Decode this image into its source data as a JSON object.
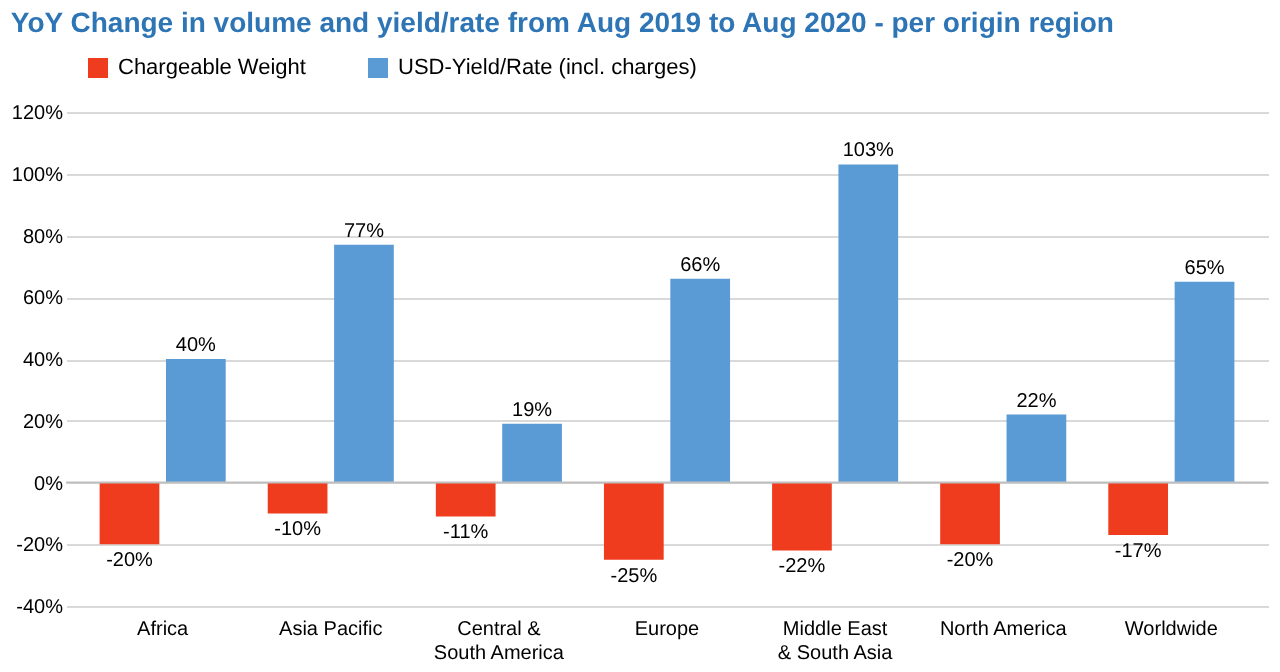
{
  "chart_data": {
    "type": "bar",
    "title": "YoY Change in volume and yield/rate from Aug 2019 to Aug 2020 - per origin region",
    "categories": [
      "Africa",
      "Asia Pacific",
      "Central &\nSouth America",
      "Europe",
      "Middle East\n& South Asia",
      "North America",
      "Worldwide"
    ],
    "series": [
      {
        "name": "Chargeable Weight",
        "color": "#f03c1e",
        "values": [
          -20,
          -10,
          -11,
          -25,
          -22,
          -20,
          -17
        ],
        "value_labels": [
          "-20%",
          "-10%",
          "-11%",
          "-25%",
          "-22%",
          "-20%",
          "-17%"
        ]
      },
      {
        "name": "USD-Yield/Rate (incl. charges)",
        "color": "#5b9bd5",
        "values": [
          40,
          77,
          19,
          66,
          103,
          22,
          65
        ],
        "value_labels": [
          "40%",
          "77%",
          "19%",
          "66%",
          "103%",
          "22%",
          "65%"
        ]
      }
    ],
    "ylim": [
      -40,
      120
    ],
    "yticks": [
      {
        "value": -40,
        "label": "-40%"
      },
      {
        "value": -20,
        "label": "-20%"
      },
      {
        "value": 0,
        "label": "0%"
      },
      {
        "value": 20,
        "label": "20%"
      },
      {
        "value": 40,
        "label": "40%"
      },
      {
        "value": 60,
        "label": "60%"
      },
      {
        "value": 80,
        "label": "80%"
      },
      {
        "value": 100,
        "label": "100%"
      },
      {
        "value": 120,
        "label": "120%"
      }
    ],
    "grid": "y",
    "legend": "top left"
  }
}
